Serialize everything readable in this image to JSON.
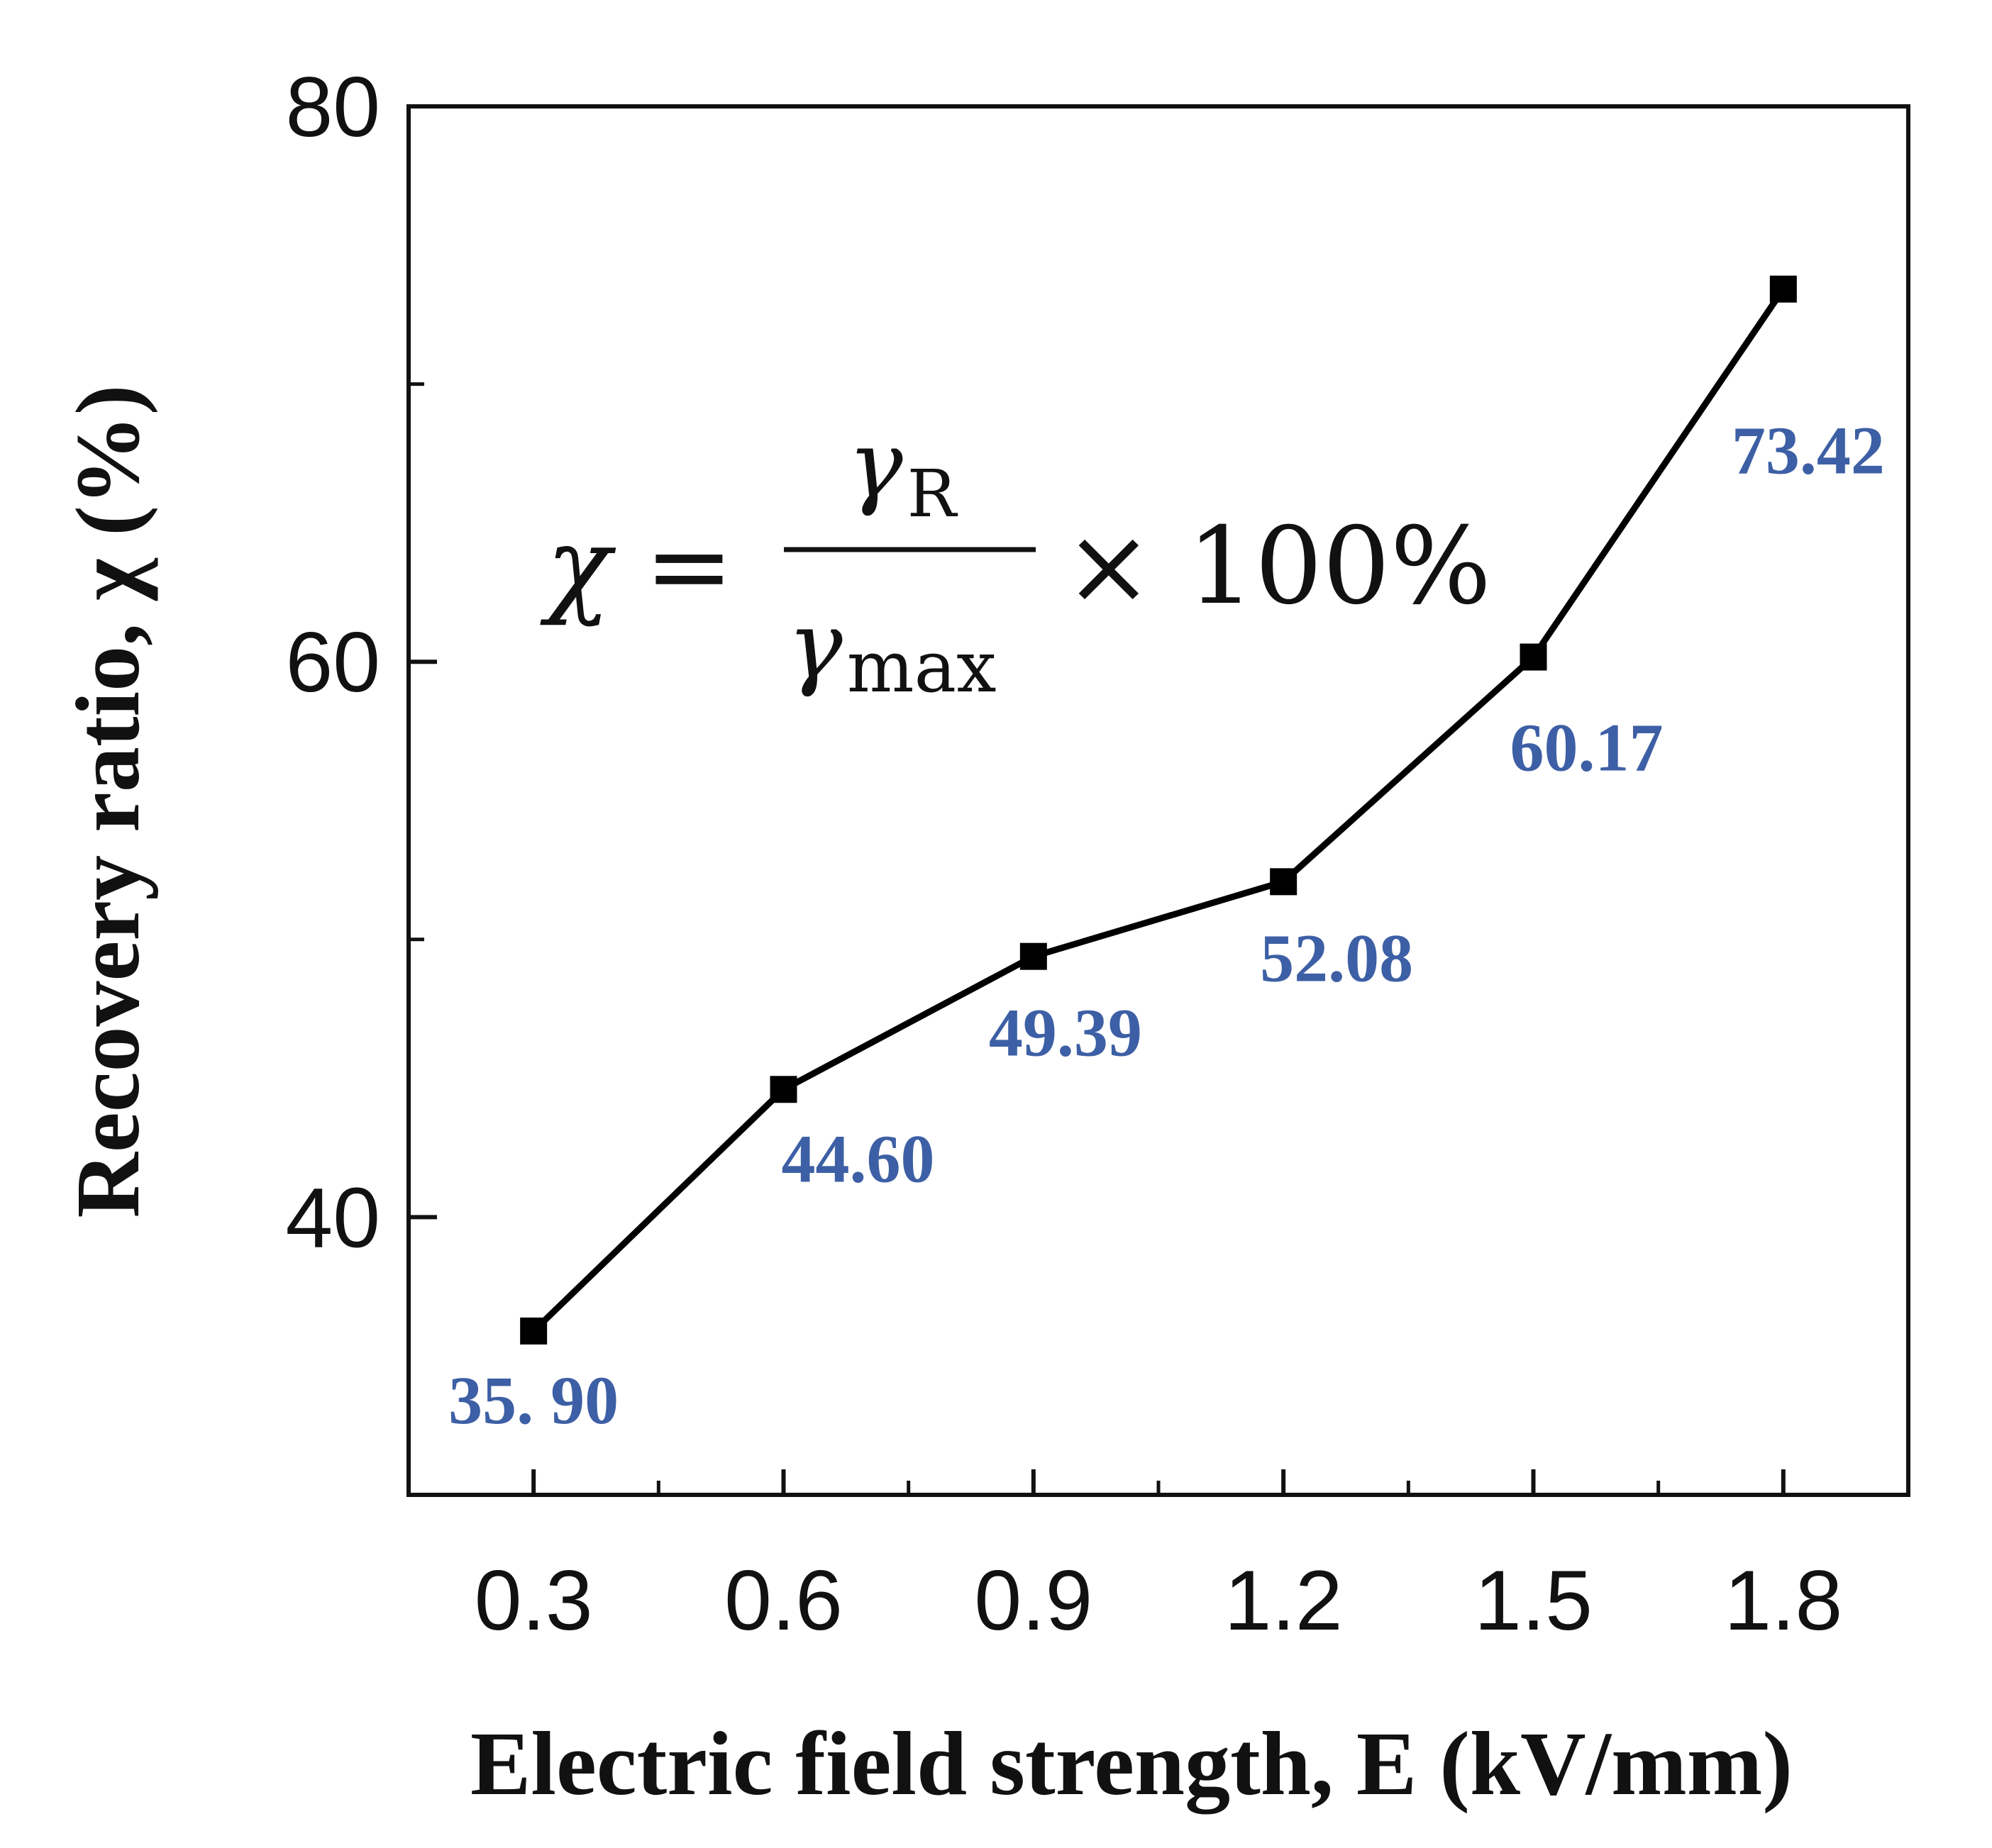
{
  "chart_data": {
    "type": "line",
    "xlabel": "Electric field strength, E (kV/mm)",
    "ylabel": "Recovery ratio, χ (%)",
    "x": [
      0.3,
      0.6,
      0.9,
      1.2,
      1.5,
      1.8
    ],
    "x_tick_labels": [
      "0.3",
      "0.6",
      "0.9",
      "1.2",
      "1.5",
      "1.8"
    ],
    "xlim": [
      0.15,
      1.95
    ],
    "ylim": [
      30,
      80
    ],
    "y_ticks": [
      40,
      60,
      80
    ],
    "y_tick_labels": [
      "40",
      "60",
      "80"
    ],
    "series": [
      {
        "values": [
          35.9,
          44.6,
          49.39,
          52.08,
          60.17,
          73.42
        ],
        "marker": "square",
        "color": "#000000"
      }
    ],
    "data_labels": [
      "35. 90",
      "44.60",
      "49.39",
      "52.08",
      "60.17",
      "73.42"
    ],
    "data_label_color": "#3d5fa5",
    "grid": false,
    "annotation": {
      "lhs": "χ =",
      "numerator": "γ",
      "numerator_sub": "R",
      "denominator": "γ",
      "denominator_sub": "max",
      "rhs": "× 100%"
    }
  }
}
